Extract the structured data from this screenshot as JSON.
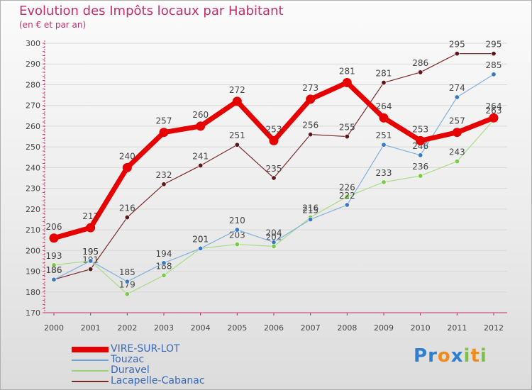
{
  "colors": {
    "title": "#c0306a",
    "legend_text": "#3868b8",
    "axis": "#c0306a",
    "grid": "#d8d8d8",
    "label": "#444444"
  },
  "chart_data": {
    "type": "line",
    "title": "Evolution des Impôts locaux par Habitant",
    "subtitle": "(en € et par an)",
    "xlabel": "",
    "ylabel": "",
    "x": [
      "2000",
      "2001",
      "2002",
      "2003",
      "2004",
      "2005",
      "2006",
      "2007",
      "2008",
      "2009",
      "2010",
      "2011",
      "2012"
    ],
    "ylim": [
      170,
      300
    ],
    "yticks": [
      170,
      180,
      190,
      200,
      210,
      220,
      230,
      240,
      250,
      260,
      270,
      280,
      290,
      300
    ],
    "grid": true,
    "legend_position": "bottom-left",
    "series": [
      {
        "name": "Lacapelle-Cabanac",
        "color": "#7a2a2a",
        "dot": "#5a1818",
        "width": 1.2,
        "marker": 3.2,
        "values": [
          186,
          191,
          216,
          232,
          241,
          251,
          235,
          256,
          255,
          281,
          286,
          295,
          295
        ]
      },
      {
        "name": "Duravel",
        "color": "#a8dc84",
        "dot": "#7cc848",
        "width": 1.2,
        "marker": 3.2,
        "values": [
          193,
          195,
          179,
          188,
          201,
          203,
          202,
          216,
          226,
          233,
          236,
          243,
          263
        ]
      },
      {
        "name": "Touzac",
        "color": "#80b0dc",
        "dot": "#3a78c4",
        "width": 1.2,
        "marker": 3.2,
        "values": [
          186,
          195,
          185,
          194,
          201,
          210,
          204,
          215,
          222,
          251,
          246,
          274,
          285
        ]
      },
      {
        "name": "VIRE-SUR-LOT",
        "color": "#e60000",
        "dot": "#e60000",
        "width": 7,
        "marker": 6.5,
        "values": [
          206,
          211,
          240,
          257,
          260,
          272,
          253,
          273,
          281,
          264,
          253,
          257,
          264
        ]
      }
    ]
  },
  "legend": {
    "items": [
      {
        "name": "VIRE-SUR-LOT",
        "color": "#e60000",
        "thickness": 8
      },
      {
        "name": "Touzac",
        "color": "#6aa2d8",
        "thickness": 2
      },
      {
        "name": "Duravel",
        "color": "#98d474",
        "thickness": 2
      },
      {
        "name": "Lacapelle-Cabanac",
        "color": "#7a2a2a",
        "thickness": 2
      }
    ]
  },
  "brand": {
    "letters": [
      {
        "ch": "P",
        "color": "#2e7fd0"
      },
      {
        "ch": "r",
        "color": "#2e7fd0"
      },
      {
        "ch": "o",
        "color": "#f08c1c"
      },
      {
        "ch": "x",
        "color": "#2e7fd0"
      },
      {
        "ch": "i",
        "color": "#7cc048"
      },
      {
        "ch": "t",
        "color": "#f08c1c"
      },
      {
        "ch": "i",
        "color": "#7cc048"
      }
    ]
  }
}
